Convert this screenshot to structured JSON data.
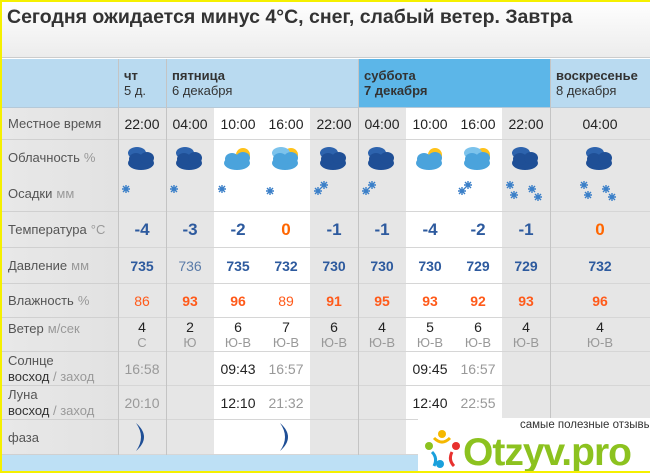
{
  "title": "Сегодня ожидается минус 4°С, снег, слабый ветер. Завтра",
  "days": [
    {
      "name": "чт",
      "date": "5 д.",
      "cols": 1,
      "selected": false
    },
    {
      "name": "пятница",
      "date": "6 декабря",
      "cols": 4,
      "selected": false
    },
    {
      "name": "суббота",
      "date": "7 декабря",
      "cols": 4,
      "selected": true
    },
    {
      "name": "воскресенье",
      "date": "8 декабря",
      "cols": 1,
      "selected": false
    }
  ],
  "row_labels": {
    "time": "Местное время",
    "cloud": "Облачность",
    "cloud_unit": "%",
    "precip": "Осадки",
    "precip_unit": "мм",
    "temp": "Температура",
    "temp_unit": "°С",
    "pressure": "Давление",
    "pressure_unit": "мм",
    "humidity": "Влажность",
    "humidity_unit": "%",
    "wind": "Ветер",
    "wind_unit": "м/сек",
    "sun": "Солнце",
    "moon": "Луна",
    "rise": "восход",
    "set_sep": " / ",
    "set": "заход",
    "phase": "фаза"
  },
  "columns": [
    {
      "time": "22:00",
      "day": false,
      "cloud": "overcast-night",
      "precip": "light-snow",
      "temp": "-4",
      "pressure": "735",
      "pressure_bold": true,
      "humidity": "86",
      "humidity_bold": false,
      "wind": "4",
      "wind_dir": "С"
    },
    {
      "time": "04:00",
      "day": false,
      "cloud": "overcast-night",
      "precip": "light-snow",
      "temp": "-3",
      "pressure": "736",
      "pressure_bold": false,
      "humidity": "93",
      "humidity_bold": true,
      "wind": "2",
      "wind_dir": "Ю"
    },
    {
      "time": "10:00",
      "day": true,
      "cloud": "partly-cloudy-sun",
      "precip": "light-snow",
      "temp": "-2",
      "pressure": "735",
      "pressure_bold": true,
      "humidity": "96",
      "humidity_bold": true,
      "wind": "6",
      "wind_dir": "Ю-В"
    },
    {
      "time": "16:00",
      "day": true,
      "cloud": "cloudy-sun",
      "precip": "trace-snow",
      "temp": "0",
      "pressure": "732",
      "pressure_bold": true,
      "humidity": "89",
      "humidity_bold": false,
      "wind": "7",
      "wind_dir": "Ю-В"
    },
    {
      "time": "22:00",
      "day": false,
      "cloud": "overcast-night",
      "precip": "snow",
      "temp": "-1",
      "pressure": "730",
      "pressure_bold": true,
      "humidity": "91",
      "humidity_bold": true,
      "wind": "6",
      "wind_dir": "Ю-В"
    },
    {
      "time": "04:00",
      "day": false,
      "cloud": "overcast-night",
      "precip": "snow",
      "temp": "-1",
      "pressure": "730",
      "pressure_bold": true,
      "humidity": "95",
      "humidity_bold": true,
      "wind": "4",
      "wind_dir": "Ю-В"
    },
    {
      "time": "10:00",
      "day": true,
      "cloud": "partly-cloudy-sun",
      "precip": "none",
      "temp": "-4",
      "pressure": "730",
      "pressure_bold": true,
      "humidity": "93",
      "humidity_bold": true,
      "wind": "5",
      "wind_dir": "Ю-В"
    },
    {
      "time": "16:00",
      "day": true,
      "cloud": "cloudy-sun",
      "precip": "snow",
      "temp": "-2",
      "pressure": "729",
      "pressure_bold": true,
      "humidity": "92",
      "humidity_bold": true,
      "wind": "6",
      "wind_dir": "Ю-В"
    },
    {
      "time": "22:00",
      "day": false,
      "cloud": "overcast-night",
      "precip": "sleet",
      "temp": "-1",
      "pressure": "729",
      "pressure_bold": true,
      "humidity": "93",
      "humidity_bold": true,
      "wind": "4",
      "wind_dir": "Ю-В"
    },
    {
      "time": "04:00",
      "day": false,
      "cloud": "overcast",
      "precip": "sleet",
      "temp": "0",
      "pressure": "732",
      "pressure_bold": true,
      "humidity": "96",
      "humidity_bold": true,
      "wind": "4",
      "wind_dir": "Ю-В"
    }
  ],
  "sun": [
    {
      "col": 0,
      "value": "16:58",
      "kind": "set"
    },
    {
      "col": 2,
      "value": "09:43",
      "kind": "rise"
    },
    {
      "col": 3,
      "value": "16:57",
      "kind": "set"
    },
    {
      "col": 6,
      "value": "09:45",
      "kind": "rise"
    },
    {
      "col": 7,
      "value": "16:57",
      "kind": "set"
    }
  ],
  "moon": [
    {
      "col": 0,
      "value": "20:10",
      "kind": "set"
    },
    {
      "col": 2,
      "value": "12:10",
      "kind": "rise"
    },
    {
      "col": 3,
      "value": "21:32",
      "kind": "set"
    },
    {
      "col": 6,
      "value": "12:40",
      "kind": "rise"
    },
    {
      "col": 7,
      "value": "22:55",
      "kind": "set"
    }
  ],
  "phase": [
    {
      "col": 0,
      "icon": "crescent-moon-icon"
    },
    {
      "col": 3,
      "icon": "crescent-moon-icon"
    },
    {
      "col": 7,
      "icon": "crescent-moon-icon"
    }
  ],
  "colors": {
    "temp_negative": "#2d5a9e",
    "temp_zero": "#ff6600",
    "pressure": "#2d5a9e",
    "humidity": "#ff5a1a",
    "header": "#b9daf0",
    "header_selected": "#5cb6e8"
  },
  "watermark": {
    "tagline": "самые полезные отзывы",
    "brand": "Otzyv.pro"
  }
}
